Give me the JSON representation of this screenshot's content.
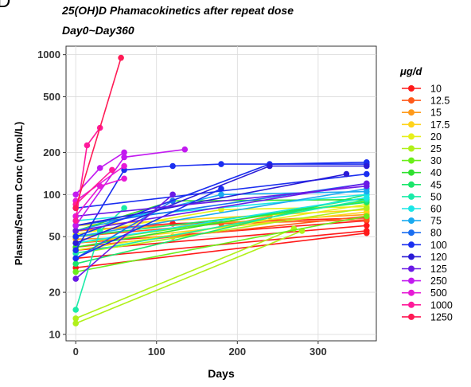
{
  "panel_letter": "D",
  "chart_data": {
    "type": "line",
    "title": "25(OH)D Phamacokinetics after repeat dose",
    "subtitle": "Day0~Day360",
    "xlabel": "Days",
    "ylabel": "Plasma/Serum Conc (nmol/L)",
    "x_scale": "linear",
    "y_scale": "log",
    "xlim": [
      -12,
      372
    ],
    "ylim": [
      9,
      1150
    ],
    "x_ticks": [
      0,
      100,
      200,
      300
    ],
    "y_ticks": [
      10,
      20,
      50,
      100,
      200,
      500,
      1000
    ],
    "grid": true,
    "legend_title": "μg/d",
    "legend_position": "right",
    "series": [
      {
        "name": "10",
        "color": "#ff1a1a",
        "lines": [
          [
            [
              0,
              40
            ],
            [
              360,
              60
            ]
          ],
          [
            [
              0,
              35
            ],
            [
              360,
              55
            ]
          ],
          [
            [
              0,
              30
            ],
            [
              360,
              53
            ]
          ],
          [
            [
              0,
              45
            ],
            [
              360,
              65
            ]
          ],
          [
            [
              0,
              55
            ],
            [
              120,
              62
            ],
            [
              360,
              68
            ]
          ]
        ]
      },
      {
        "name": "12.5",
        "color": "#ff5a1a",
        "lines": [
          [
            [
              0,
              50
            ],
            [
              180,
              62
            ],
            [
              360,
              66
            ]
          ],
          [
            [
              0,
              42
            ],
            [
              360,
              70
            ]
          ]
        ]
      },
      {
        "name": "15",
        "color": "#ff9a1a",
        "lines": [
          [
            [
              0,
              55
            ],
            [
              360,
              72
            ]
          ],
          [
            [
              0,
              48
            ],
            [
              120,
              50
            ],
            [
              240,
              70
            ]
          ]
        ]
      },
      {
        "name": "17.5",
        "color": "#ffd31a",
        "lines": [
          [
            [
              0,
              45
            ],
            [
              360,
              75
            ]
          ],
          [
            [
              0,
              60
            ],
            [
              360,
              78
            ]
          ]
        ]
      },
      {
        "name": "20",
        "color": "#e6f01a",
        "lines": [
          [
            [
              0,
              40
            ],
            [
              360,
              85
            ]
          ],
          [
            [
              0,
              52
            ],
            [
              180,
              78
            ],
            [
              360,
              82
            ]
          ]
        ]
      },
      {
        "name": "25",
        "color": "#b0f01a",
        "lines": [
          [
            [
              0,
              13
            ],
            [
              270,
              57
            ]
          ],
          [
            [
              0,
              12
            ],
            [
              280,
              55
            ]
          ],
          [
            [
              0,
              38
            ],
            [
              360,
              80
            ]
          ]
        ]
      },
      {
        "name": "30",
        "color": "#6aef1a",
        "lines": [
          [
            [
              0,
              28
            ],
            [
              360,
              70
            ]
          ],
          [
            [
              0,
              45
            ],
            [
              360,
              90
            ]
          ]
        ]
      },
      {
        "name": "40",
        "color": "#2fe02f",
        "lines": [
          [
            [
              0,
              42
            ],
            [
              360,
              95
            ]
          ],
          [
            [
              0,
              55
            ],
            [
              120,
              90
            ],
            [
              360,
              92
            ]
          ]
        ]
      },
      {
        "name": "45",
        "color": "#1ae66a",
        "lines": [
          [
            [
              0,
              32
            ],
            [
              360,
              100
            ]
          ],
          [
            [
              0,
              50
            ],
            [
              360,
              88
            ]
          ]
        ]
      },
      {
        "name": "50",
        "color": "#1aeba8",
        "lines": [
          [
            [
              0,
              15
            ],
            [
              30,
              55
            ],
            [
              60,
              80
            ]
          ],
          [
            [
              0,
              38
            ],
            [
              360,
              92
            ]
          ]
        ]
      },
      {
        "name": "60",
        "color": "#1ae6e6",
        "lines": [
          [
            [
              0,
              45
            ],
            [
              360,
              95
            ]
          ],
          [
            [
              0,
              65
            ],
            [
              360,
              100
            ]
          ]
        ]
      },
      {
        "name": "75",
        "color": "#1aaaf0",
        "lines": [
          [
            [
              0,
              50
            ],
            [
              360,
              110
            ]
          ],
          [
            [
              0,
              55
            ],
            [
              180,
              100
            ],
            [
              360,
              105
            ]
          ]
        ]
      },
      {
        "name": "80",
        "color": "#1a6ef0",
        "lines": [
          [
            [
              0,
              60
            ],
            [
              360,
              120
            ]
          ],
          [
            [
              0,
              35
            ],
            [
              120,
              90
            ]
          ]
        ]
      },
      {
        "name": "100",
        "color": "#1a2ef0",
        "lines": [
          [
            [
              0,
              40
            ],
            [
              60,
              150
            ],
            [
              120,
              160
            ],
            [
              180,
              165
            ],
            [
              360,
              165
            ]
          ],
          [
            [
              0,
              50
            ],
            [
              240,
              165
            ],
            [
              360,
              170
            ]
          ],
          [
            [
              0,
              35
            ],
            [
              180,
              110
            ]
          ],
          [
            [
              0,
              80
            ],
            [
              360,
              140
            ]
          ]
        ]
      },
      {
        "name": "120",
        "color": "#2a1ad6",
        "lines": [
          [
            [
              0,
              45
            ],
            [
              240,
              160
            ],
            [
              360,
              160
            ]
          ],
          [
            [
              0,
              60
            ],
            [
              335,
              140
            ]
          ]
        ]
      },
      {
        "name": "125",
        "color": "#6a1ae6",
        "lines": [
          [
            [
              0,
              70
            ],
            [
              360,
              115
            ]
          ],
          [
            [
              0,
              55
            ],
            [
              360,
              120
            ]
          ],
          [
            [
              0,
              25
            ],
            [
              120,
              100
            ]
          ]
        ]
      },
      {
        "name": "250",
        "color": "#c21af0",
        "lines": [
          [
            [
              0,
              100
            ],
            [
              30,
              155
            ],
            [
              60,
              200
            ]
          ],
          [
            [
              0,
              60
            ],
            [
              60,
              185
            ],
            [
              135,
              210
            ]
          ]
        ]
      },
      {
        "name": "500",
        "color": "#e61ad6",
        "lines": [
          [
            [
              0,
              70
            ],
            [
              30,
              115
            ],
            [
              60,
              130
            ]
          ],
          [
            [
              0,
              90
            ],
            [
              60,
              160
            ]
          ]
        ]
      },
      {
        "name": "1000",
        "color": "#ff1a9a",
        "lines": [
          [
            [
              0,
              65
            ],
            [
              14,
              225
            ],
            [
              30,
              300
            ]
          ],
          [
            [
              0,
              85
            ],
            [
              45,
              150
            ]
          ]
        ]
      },
      {
        "name": "1250",
        "color": "#ff1a55",
        "lines": [
          [
            [
              0,
              80
            ],
            [
              56,
              950
            ]
          ]
        ]
      }
    ]
  }
}
